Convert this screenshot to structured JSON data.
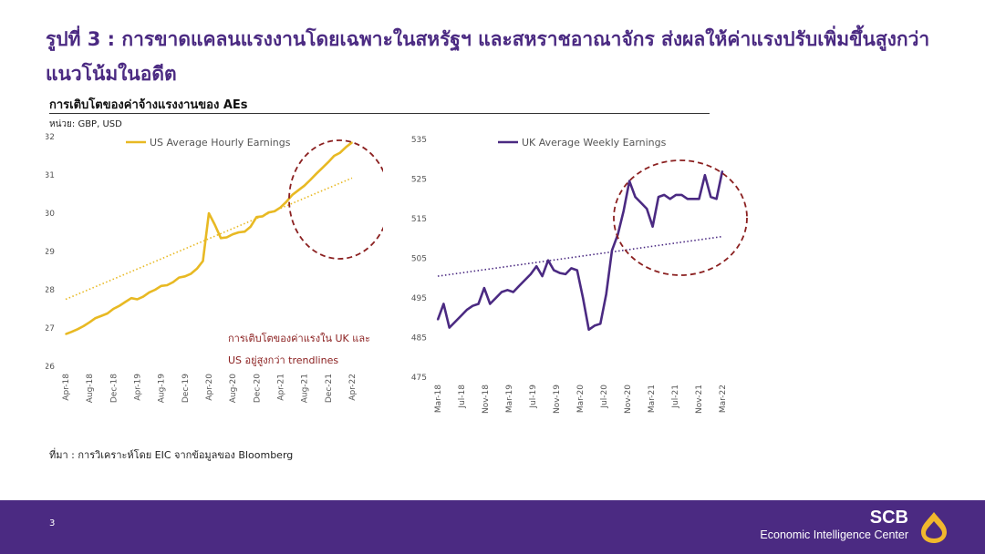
{
  "page": {
    "title": "รูปที่ 3 : การขาดแคลนแรงงานโดยเฉพาะในสหรัฐฯ และสหราชอาณาจักร ส่งผลให้ค่าแรงปรับเพิ่มขึ้นสูงกว่าแนวโน้มในอดีต",
    "subtitle": "การเติบโตของค่าจ้างแรงงานของ AEs",
    "unit": "หน่วย: GBP, USD",
    "source": "ที่มา : การวิเคราะห์โดย EIC จากข้อมูลของ Bloomberg",
    "page_number": "3",
    "brand_name": "SCB",
    "brand_subtitle": "Economic Intelligence Center"
  },
  "colors": {
    "title": "#4b2a82",
    "footer": "#4b2a82",
    "us_series": "#e8b923",
    "uk_series": "#4b2a82",
    "annotation": "#8b2020",
    "logo": "#f1b82d"
  },
  "chart_data": [
    {
      "type": "line",
      "legend_position": "top",
      "ylim": [
        26,
        32
      ],
      "y_ticks": [
        "26",
        "27",
        "28",
        "29",
        "30",
        "31",
        "32"
      ],
      "x_tick_labels": [
        "Apr-18",
        "Aug-18",
        "Dec-18",
        "Apr-19",
        "Aug-19",
        "Dec-19",
        "Apr-20",
        "Aug-20",
        "Dec-20",
        "Apr-21",
        "Aug-21",
        "Dec-21",
        "Apr-22"
      ],
      "series": [
        {
          "name": "US Average Hourly Earnings",
          "values": [
            26.84,
            26.9,
            26.97,
            27.05,
            27.15,
            27.26,
            27.32,
            27.38,
            27.5,
            27.58,
            27.68,
            27.78,
            27.75,
            27.82,
            27.93,
            28.0,
            28.1,
            28.12,
            28.2,
            28.32,
            28.35,
            28.42,
            28.55,
            28.75,
            30.0,
            29.7,
            29.35,
            29.37,
            29.45,
            29.5,
            29.52,
            29.65,
            29.9,
            29.92,
            30.02,
            30.05,
            30.15,
            30.3,
            30.48,
            30.6,
            30.72,
            30.87,
            31.03,
            31.18,
            31.33,
            31.5,
            31.58,
            31.73,
            31.85
          ]
        },
        {
          "name": "trendline",
          "style": "dotted",
          "values": [
            27.75,
            30.92
          ]
        }
      ],
      "annotation": [
        "การเติบโตของค่าแรงใน UK และ",
        "US อยู่สูงกว่า trendlines"
      ]
    },
    {
      "type": "line",
      "legend_position": "top",
      "ylim": [
        475,
        535
      ],
      "y_ticks": [
        "475",
        "485",
        "495",
        "505",
        "515",
        "525",
        "535"
      ],
      "x_tick_labels": [
        "Mar-18",
        "Jul-18",
        "Nov-18",
        "Mar-19",
        "Jul-19",
        "Nov-19",
        "Mar-20",
        "Jul-20",
        "Nov-20",
        "Mar-21",
        "Jul-21",
        "Nov-21",
        "Mar-22"
      ],
      "series": [
        {
          "name": "UK Average Weekly Earnings",
          "values": [
            489.5,
            493.5,
            487.5,
            489,
            490.5,
            492,
            493,
            493.5,
            497.5,
            493.5,
            495,
            496.5,
            497,
            496.5,
            498,
            499.5,
            501,
            503,
            500.5,
            504.5,
            502,
            501.3,
            501,
            502.5,
            502,
            495,
            487,
            488,
            488.5,
            496,
            507,
            511,
            517,
            524.5,
            520.5,
            519,
            517.5,
            513,
            520.5,
            521,
            520,
            521,
            521,
            520,
            520,
            520,
            526,
            520.5,
            520,
            527
          ]
        },
        {
          "name": "trendline",
          "style": "dotted",
          "values": [
            500.5,
            510.5
          ]
        }
      ]
    }
  ]
}
